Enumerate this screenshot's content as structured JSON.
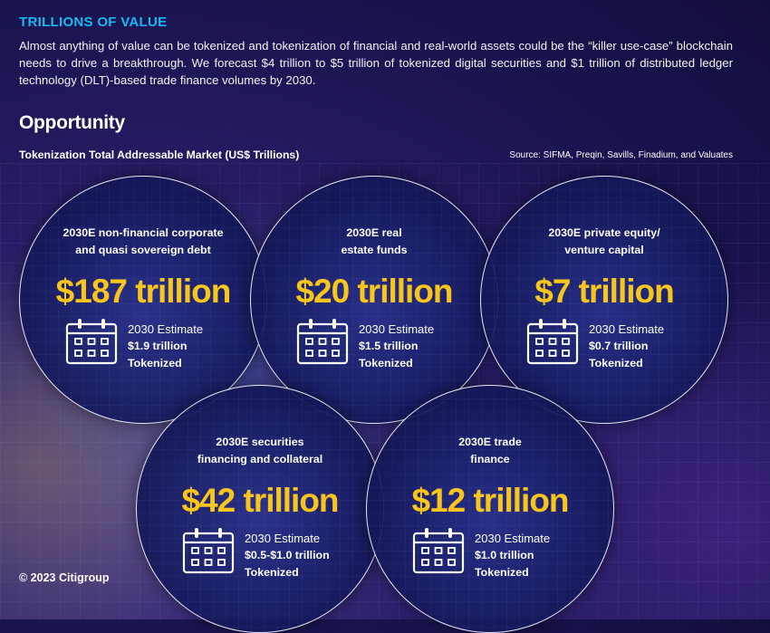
{
  "header": {
    "title": "TRILLIONS OF VALUE",
    "intro": "Almost anything of value can be tokenized and tokenization of financial and real-world assets could be the “killer use-case” blockchain needs to drive a breakthrough. We forecast $4 trillion to $5 trillion of tokenized digital securities and $1 trillion of distributed ledger technology (DLT)-based trade finance volumes by 2030."
  },
  "section": {
    "title": "Opportunity",
    "chart_title": "Tokenization Total Addressable Market (US$ Trillions)",
    "source": "Source: SIFMA, Preqin, Savills, Finadium, and Valuates"
  },
  "markets": [
    {
      "label_1": "2030E non-financial corporate",
      "label_2": "and quasi sovereign debt",
      "value": "$187 trillion",
      "est_title": "2030 Estimate",
      "est_amount": "$1.9 trillion",
      "est_suffix": "Tokenized"
    },
    {
      "label_1": "2030E real",
      "label_2": "estate funds",
      "value": "$20 trillion",
      "est_title": "2030 Estimate",
      "est_amount": "$1.5 trillion",
      "est_suffix": "Tokenized"
    },
    {
      "label_1": "2030E private equity/",
      "label_2": "venture capital",
      "value": "$7 trillion",
      "est_title": "2030 Estimate",
      "est_amount": "$0.7 trillion",
      "est_suffix": "Tokenized"
    },
    {
      "label_1": "2030E securities",
      "label_2": "financing and collateral",
      "value": "$42 trillion",
      "est_title": "2030 Estimate",
      "est_amount": "$0.5-$1.0 trillion",
      "est_suffix": "Tokenized"
    },
    {
      "label_1": "2030E trade",
      "label_2": "finance",
      "value": "$12 trillion",
      "est_title": "2030 Estimate",
      "est_amount": "$1.0 trillion",
      "est_suffix": "Tokenized"
    }
  ],
  "footer": {
    "copyright": "© 2023 Citigroup"
  },
  "colors": {
    "accent_blue": "#17b9f0",
    "value_yellow": "#f8c51c",
    "background": "#1a1450"
  }
}
